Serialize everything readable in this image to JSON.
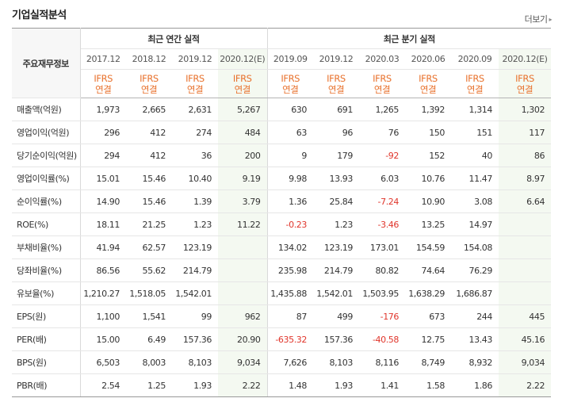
{
  "title": "기업실적분석",
  "more_label": "더보기",
  "header": {
    "row_label": "주요재무정보",
    "annual_group": "최근 연간 실적",
    "quarter_group": "최근 분기 실적",
    "periods": [
      "2017.12",
      "2018.12",
      "2019.12",
      "2020.12(E)",
      "2019.09",
      "2019.12",
      "2020.03",
      "2020.06",
      "2020.09",
      "2020.12(E)"
    ],
    "ifrs_line1": "IFRS",
    "ifrs_line2": "연결"
  },
  "rows": [
    {
      "label": "매출액(억원)",
      "values": [
        "1,973",
        "2,665",
        "2,631",
        "5,267",
        "630",
        "691",
        "1,265",
        "1,392",
        "1,314",
        "1,302"
      ]
    },
    {
      "label": "영업이익(억원)",
      "values": [
        "296",
        "412",
        "274",
        "484",
        "63",
        "96",
        "76",
        "150",
        "151",
        "117"
      ]
    },
    {
      "label": "당기순이익(억원)",
      "values": [
        "294",
        "412",
        "36",
        "200",
        "9",
        "179",
        "-92",
        "152",
        "40",
        "86"
      ]
    },
    {
      "label": "영업이익률(%)",
      "values": [
        "15.01",
        "15.46",
        "10.40",
        "9.19",
        "9.98",
        "13.93",
        "6.03",
        "10.76",
        "11.47",
        "8.97"
      ]
    },
    {
      "label": "순이익률(%)",
      "values": [
        "14.90",
        "15.46",
        "1.39",
        "3.79",
        "1.36",
        "25.84",
        "-7.24",
        "10.90",
        "3.08",
        "6.64"
      ]
    },
    {
      "label": "ROE(%)",
      "values": [
        "18.11",
        "21.25",
        "1.23",
        "11.22",
        "-0.23",
        "1.23",
        "-3.46",
        "13.25",
        "14.97",
        ""
      ]
    },
    {
      "label": "부채비율(%)",
      "values": [
        "41.94",
        "62.57",
        "123.19",
        "",
        "134.02",
        "123.19",
        "173.01",
        "154.59",
        "154.08",
        ""
      ]
    },
    {
      "label": "당좌비율(%)",
      "values": [
        "86.56",
        "55.62",
        "214.79",
        "",
        "235.98",
        "214.79",
        "80.82",
        "74.64",
        "76.29",
        ""
      ]
    },
    {
      "label": "유보율(%)",
      "values": [
        "1,210.27",
        "1,518.05",
        "1,542.01",
        "",
        "1,435.88",
        "1,542.01",
        "1,503.95",
        "1,638.29",
        "1,686.87",
        ""
      ]
    },
    {
      "label": "EPS(원)",
      "values": [
        "1,100",
        "1,541",
        "99",
        "962",
        "87",
        "499",
        "-176",
        "673",
        "244",
        "445"
      ]
    },
    {
      "label": "PER(배)",
      "values": [
        "15.00",
        "6.49",
        "157.36",
        "20.90",
        "-635.32",
        "157.36",
        "-40.58",
        "12.75",
        "13.43",
        "45.16"
      ]
    },
    {
      "label": "BPS(원)",
      "values": [
        "6,503",
        "8,003",
        "8,103",
        "9,034",
        "7,626",
        "8,103",
        "8,116",
        "8,749",
        "8,932",
        "9,034"
      ]
    },
    {
      "label": "PBR(배)",
      "values": [
        "2.54",
        "1.25",
        "1.93",
        "2.22",
        "1.48",
        "1.93",
        "1.41",
        "1.58",
        "1.86",
        "2.22"
      ]
    }
  ]
}
